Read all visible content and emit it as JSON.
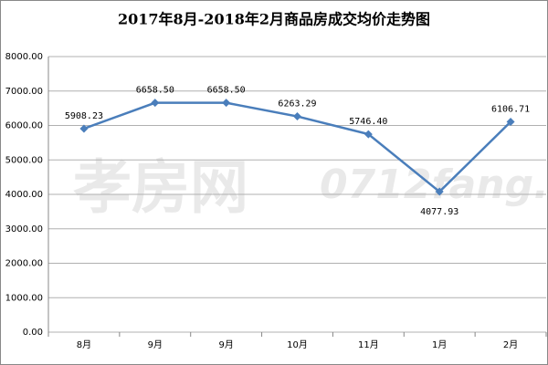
{
  "chart_data": {
    "type": "line",
    "title": "2017年8月-2018年2月商品房成交均价走势图",
    "annotations": [
      "孝房网",
      "0712fang.com"
    ],
    "categories": [
      "8月",
      "9月",
      "9月",
      "10月",
      "11月",
      "1月",
      "2月"
    ],
    "series": [
      {
        "name": "均价",
        "color": "#4a7ebb",
        "values": [
          5908.23,
          6658.5,
          6658.5,
          6263.29,
          5746.4,
          4077.93,
          6106.71
        ],
        "value_labels": [
          "5908.23",
          "6658.50",
          "6658.50",
          "6263.29",
          "5746.40",
          "4077.93",
          "6106.71"
        ]
      }
    ],
    "ylim": [
      0,
      8000
    ],
    "yticks": [
      {
        "value": 0,
        "label": "0.00"
      },
      {
        "value": 1000,
        "label": "1000.00"
      },
      {
        "value": 2000,
        "label": "2000.00"
      },
      {
        "value": 3000,
        "label": "3000.00"
      },
      {
        "value": 4000,
        "label": "4000.00"
      },
      {
        "value": 5000,
        "label": "5000.00"
      },
      {
        "value": 6000,
        "label": "6000.00"
      },
      {
        "value": 7000,
        "label": "7000.00"
      },
      {
        "value": 8000,
        "label": "8000.00"
      }
    ],
    "grid": true
  }
}
